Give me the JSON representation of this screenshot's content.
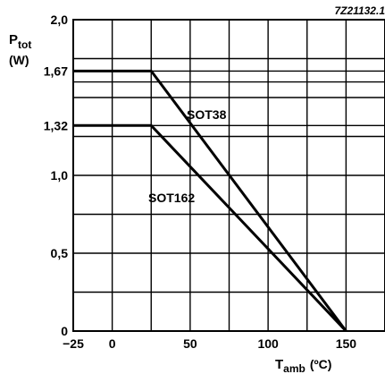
{
  "chart_data": {
    "type": "line",
    "figure_id": "7Z21132.1",
    "ylabel": "P",
    "ylabel_sub": "tot",
    "yunit": "(W)",
    "xlabel": "T",
    "xlabel_sub": "amb",
    "xunit": "(ºC)",
    "xlim": [
      -25,
      175
    ],
    "ylim": [
      0,
      2.0
    ],
    "x_gridlines": [
      -25,
      0,
      25,
      50,
      75,
      100,
      125,
      150,
      175
    ],
    "y_gridlines": [
      0,
      0.25,
      0.5,
      0.75,
      1.0,
      1.25,
      1.5,
      1.75,
      2.0
    ],
    "x_ticks": [
      {
        "value": -25,
        "label": "−25"
      },
      {
        "value": 0,
        "label": "0"
      },
      {
        "value": 50,
        "label": "50"
      },
      {
        "value": 100,
        "label": "100"
      },
      {
        "value": 150,
        "label": "150"
      }
    ],
    "y_ticks": [
      {
        "value": 0,
        "label": "0"
      },
      {
        "value": 0.5,
        "label": "0,5"
      },
      {
        "value": 1.0,
        "label": "1,0"
      },
      {
        "value": 1.32,
        "label": "1,32"
      },
      {
        "value": 1.67,
        "label": "1,67"
      },
      {
        "value": 2.0,
        "label": "2,0"
      }
    ],
    "series": [
      {
        "name": "SOT38",
        "x": [
          -25,
          25,
          150
        ],
        "y": [
          1.67,
          1.67,
          0
        ]
      },
      {
        "name": "SOT162",
        "x": [
          -25,
          25,
          150
        ],
        "y": [
          1.32,
          1.32,
          0
        ]
      }
    ],
    "extra_hlines": [
      1.6
    ]
  }
}
